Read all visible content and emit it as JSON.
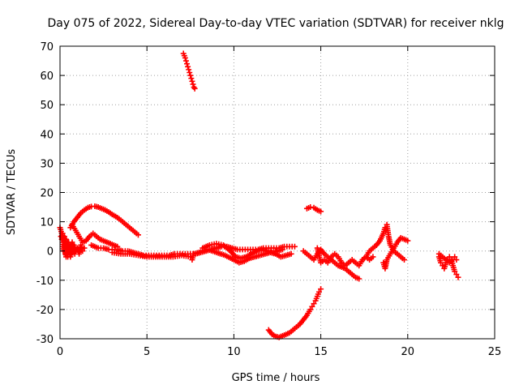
{
  "chart_data": {
    "type": "scatter",
    "title": "Day 075 of 2022, Sidereal Day-to-day VTEC variation (SDTVAR) for receiver nklg",
    "xlabel": "GPS time / hours",
    "ylabel": "SDTVAR / TECUs",
    "xlim": [
      0,
      25
    ],
    "ylim": [
      -30,
      70
    ],
    "xticks": [
      0,
      5,
      10,
      15,
      20,
      25
    ],
    "yticks": [
      -30,
      -20,
      -10,
      0,
      10,
      20,
      30,
      40,
      50,
      60,
      70
    ],
    "grid": true,
    "marker": "+",
    "series_color": "#ff0000",
    "segments": [
      {
        "name": "early-noise-a",
        "points": [
          [
            0.0,
            8
          ],
          [
            0.1,
            6
          ],
          [
            0.15,
            3
          ],
          [
            0.2,
            0
          ],
          [
            0.25,
            2
          ],
          [
            0.3,
            -1
          ],
          [
            0.35,
            4
          ],
          [
            0.4,
            1
          ],
          [
            0.45,
            -2
          ],
          [
            0.5,
            3
          ],
          [
            0.55,
            0
          ],
          [
            0.6,
            2
          ],
          [
            0.65,
            -1
          ],
          [
            0.7,
            1
          ],
          [
            0.8,
            2
          ],
          [
            0.9,
            0
          ],
          [
            1.0,
            1
          ],
          [
            1.1,
            -1
          ],
          [
            1.2,
            2
          ],
          [
            1.3,
            0
          ],
          [
            1.4,
            1
          ]
        ]
      },
      {
        "name": "early-noise-b",
        "points": [
          [
            0.05,
            5
          ],
          [
            0.1,
            4
          ],
          [
            0.15,
            6
          ],
          [
            0.2,
            3
          ],
          [
            0.25,
            5
          ],
          [
            0.3,
            2
          ],
          [
            0.35,
            -2
          ],
          [
            0.4,
            0
          ],
          [
            0.45,
            3
          ],
          [
            0.5,
            1
          ],
          [
            0.6,
            -2
          ],
          [
            0.7,
            3
          ],
          [
            0.75,
            1
          ],
          [
            0.85,
            -1
          ]
        ]
      },
      {
        "name": "arc-rise",
        "points": [
          [
            0.6,
            8
          ],
          [
            0.8,
            10
          ],
          [
            1.0,
            11.5
          ],
          [
            1.2,
            13
          ],
          [
            1.4,
            14
          ],
          [
            1.6,
            14.8
          ],
          [
            1.8,
            15.2
          ],
          [
            2.0,
            15.3
          ],
          [
            2.2,
            15
          ],
          [
            2.4,
            14.5
          ],
          [
            2.6,
            14
          ],
          [
            2.8,
            13.3
          ],
          [
            3.0,
            12.5
          ],
          [
            3.2,
            11.8
          ],
          [
            3.4,
            11
          ],
          [
            3.6,
            10
          ],
          [
            3.8,
            9
          ],
          [
            4.0,
            8
          ],
          [
            4.2,
            7
          ],
          [
            4.4,
            6
          ],
          [
            4.5,
            5.5
          ]
        ]
      },
      {
        "name": "mid-curve",
        "points": [
          [
            0.7,
            9
          ],
          [
            0.9,
            7
          ],
          [
            1.1,
            5
          ],
          [
            1.3,
            3
          ],
          [
            1.5,
            3.5
          ],
          [
            1.7,
            5
          ],
          [
            1.9,
            6
          ],
          [
            2.1,
            5
          ],
          [
            2.3,
            4
          ],
          [
            2.5,
            3.5
          ],
          [
            2.7,
            3
          ],
          [
            2.9,
            2.5
          ],
          [
            3.1,
            2
          ],
          [
            3.3,
            1.5
          ]
        ]
      },
      {
        "name": "flat-band",
        "points": [
          [
            1.8,
            2
          ],
          [
            2.0,
            1.5
          ],
          [
            2.2,
            1
          ],
          [
            2.5,
            1
          ],
          [
            2.8,
            0.5
          ],
          [
            3.0,
            0.5
          ],
          [
            3.3,
            0.5
          ],
          [
            3.6,
            0
          ],
          [
            3.9,
            0
          ],
          [
            4.2,
            -0.5
          ],
          [
            4.5,
            -1
          ],
          [
            4.8,
            -1.5
          ],
          [
            5.1,
            -1.5
          ],
          [
            5.4,
            -1.5
          ],
          [
            5.7,
            -1.5
          ],
          [
            6.0,
            -1.5
          ],
          [
            6.3,
            -1.5
          ],
          [
            6.6,
            -1
          ],
          [
            6.9,
            -1
          ],
          [
            7.2,
            -1
          ],
          [
            7.5,
            -1
          ],
          [
            7.8,
            -1
          ],
          [
            8.1,
            -0.5
          ],
          [
            8.4,
            0
          ],
          [
            8.7,
            0.5
          ],
          [
            9.0,
            1
          ],
          [
            9.3,
            1.5
          ],
          [
            9.6,
            1.5
          ],
          [
            9.9,
            1
          ],
          [
            10.2,
            0.5
          ],
          [
            10.5,
            0.5
          ],
          [
            10.8,
            0.5
          ],
          [
            11.1,
            0.5
          ],
          [
            11.4,
            0.5
          ],
          [
            11.7,
            1
          ],
          [
            12.0,
            1
          ],
          [
            12.3,
            1
          ],
          [
            12.6,
            1
          ],
          [
            12.9,
            1.5
          ],
          [
            13.2,
            1.5
          ],
          [
            13.5,
            1.5
          ]
        ]
      },
      {
        "name": "flat-band-lower",
        "points": [
          [
            3.0,
            -0.5
          ],
          [
            3.5,
            -1
          ],
          [
            4.0,
            -1
          ],
          [
            4.5,
            -1.5
          ],
          [
            5.0,
            -2
          ],
          [
            5.5,
            -2
          ],
          [
            6.0,
            -2
          ],
          [
            6.5,
            -2
          ],
          [
            7.0,
            -1.5
          ],
          [
            7.5,
            -2
          ],
          [
            7.6,
            -3
          ],
          [
            7.7,
            -1
          ],
          [
            8.0,
            -0.5
          ],
          [
            8.5,
            0.5
          ],
          [
            9.0,
            -0.5
          ],
          [
            9.5,
            -1.5
          ],
          [
            10.0,
            -3
          ],
          [
            10.3,
            -4
          ],
          [
            10.6,
            -3.5
          ],
          [
            10.9,
            -2.5
          ],
          [
            11.2,
            -2
          ],
          [
            11.5,
            -1.5
          ],
          [
            11.8,
            -1
          ],
          [
            12.1,
            -0.5
          ],
          [
            12.4,
            -1
          ],
          [
            12.7,
            -2
          ],
          [
            13.0,
            -1.5
          ],
          [
            13.3,
            -1
          ]
        ]
      },
      {
        "name": "flat-band-mid",
        "points": [
          [
            8.2,
            1
          ],
          [
            8.6,
            2
          ],
          [
            9.0,
            2.5
          ],
          [
            9.4,
            2
          ],
          [
            9.8,
            0
          ],
          [
            10.1,
            -2
          ],
          [
            10.4,
            -2.5
          ],
          [
            10.7,
            -2
          ],
          [
            11.0,
            -1
          ],
          [
            11.3,
            0
          ],
          [
            11.6,
            0.5
          ],
          [
            11.9,
            0
          ],
          [
            12.2,
            -0.5
          ],
          [
            12.5,
            0
          ],
          [
            12.8,
            0.5
          ]
        ]
      },
      {
        "name": "spike-top",
        "points": [
          [
            7.1,
            67.5
          ],
          [
            7.2,
            66
          ],
          [
            7.25,
            65
          ],
          [
            7.3,
            64
          ],
          [
            7.35,
            63
          ],
          [
            7.4,
            62
          ],
          [
            7.45,
            61
          ],
          [
            7.5,
            60
          ],
          [
            7.55,
            59
          ],
          [
            7.6,
            58
          ],
          [
            7.65,
            57
          ],
          [
            7.7,
            56
          ],
          [
            7.75,
            55.5
          ]
        ]
      },
      {
        "name": "low-arc",
        "points": [
          [
            12.0,
            -27
          ],
          [
            12.2,
            -28.5
          ],
          [
            12.4,
            -29.2
          ],
          [
            12.6,
            -29.5
          ],
          [
            12.8,
            -29
          ],
          [
            13.0,
            -28.5
          ],
          [
            13.2,
            -28
          ],
          [
            13.4,
            -27
          ],
          [
            13.6,
            -26
          ],
          [
            13.8,
            -25
          ],
          [
            14.0,
            -23.5
          ],
          [
            14.2,
            -22
          ],
          [
            14.4,
            -20
          ],
          [
            14.5,
            -19
          ],
          [
            14.6,
            -18
          ],
          [
            14.7,
            -17
          ],
          [
            14.8,
            -15.5
          ],
          [
            14.9,
            -14
          ],
          [
            15.0,
            -13
          ]
        ]
      },
      {
        "name": "small-arc",
        "points": [
          [
            14.2,
            14.5
          ],
          [
            14.4,
            15
          ],
          [
            14.6,
            14.8
          ],
          [
            14.8,
            14
          ],
          [
            15.0,
            13.5
          ]
        ]
      },
      {
        "name": "cluster-15-18",
        "points": [
          [
            14.0,
            0
          ],
          [
            14.2,
            -1
          ],
          [
            14.4,
            -2
          ],
          [
            14.6,
            -3
          ],
          [
            14.8,
            -1
          ],
          [
            15.0,
            0.5
          ],
          [
            15.2,
            -1
          ],
          [
            15.4,
            -2
          ],
          [
            15.6,
            -3
          ],
          [
            15.8,
            -4
          ],
          [
            16.0,
            -5
          ],
          [
            16.2,
            -5.5
          ],
          [
            16.4,
            -6
          ],
          [
            16.6,
            -7
          ],
          [
            16.8,
            -8
          ],
          [
            17.0,
            -9
          ],
          [
            17.2,
            -9.5
          ]
        ]
      },
      {
        "name": "cluster-15-18-b",
        "points": [
          [
            14.8,
            1
          ],
          [
            15.0,
            -4
          ],
          [
            15.2,
            -3
          ],
          [
            15.4,
            -4
          ],
          [
            15.6,
            -2
          ],
          [
            15.8,
            -1
          ],
          [
            16.0,
            -2
          ],
          [
            16.2,
            -4
          ],
          [
            16.4,
            -5
          ],
          [
            16.6,
            -4
          ],
          [
            16.8,
            -3
          ],
          [
            17.0,
            -4
          ],
          [
            17.2,
            -5
          ],
          [
            17.4,
            -3
          ],
          [
            17.6,
            -2
          ],
          [
            17.8,
            -3
          ],
          [
            18.0,
            -2
          ]
        ]
      },
      {
        "name": "rise-18",
        "points": [
          [
            17.4,
            -3
          ],
          [
            17.6,
            -2
          ],
          [
            17.8,
            0
          ],
          [
            18.0,
            1
          ],
          [
            18.2,
            2
          ],
          [
            18.4,
            3.5
          ],
          [
            18.6,
            6
          ],
          [
            18.7,
            8
          ],
          [
            18.8,
            9
          ],
          [
            18.9,
            5
          ],
          [
            19.0,
            2
          ],
          [
            19.2,
            0
          ],
          [
            19.4,
            -1
          ],
          [
            19.6,
            -2
          ],
          [
            19.8,
            -3
          ]
        ]
      },
      {
        "name": "rise-18-b",
        "points": [
          [
            18.6,
            -4
          ],
          [
            18.7,
            -6
          ],
          [
            18.8,
            -3
          ],
          [
            19.0,
            -1
          ],
          [
            19.2,
            1
          ],
          [
            19.4,
            3
          ],
          [
            19.6,
            4.5
          ],
          [
            19.8,
            4
          ],
          [
            20.0,
            3.5
          ]
        ]
      },
      {
        "name": "cluster-22",
        "points": [
          [
            21.8,
            -2
          ],
          [
            21.9,
            -4
          ],
          [
            22.0,
            -5
          ],
          [
            22.1,
            -6
          ],
          [
            22.2,
            -4
          ],
          [
            22.3,
            -3
          ],
          [
            22.4,
            -2
          ],
          [
            22.5,
            -3
          ],
          [
            22.6,
            -5
          ],
          [
            22.7,
            -7
          ],
          [
            22.8,
            -8
          ],
          [
            22.9,
            -9
          ]
        ]
      },
      {
        "name": "cluster-22-b",
        "points": [
          [
            21.8,
            -1
          ],
          [
            22.0,
            -2
          ],
          [
            22.2,
            -3
          ],
          [
            22.4,
            -4
          ],
          [
            22.6,
            -3
          ],
          [
            22.7,
            -2
          ],
          [
            22.8,
            -3
          ]
        ]
      }
    ]
  }
}
